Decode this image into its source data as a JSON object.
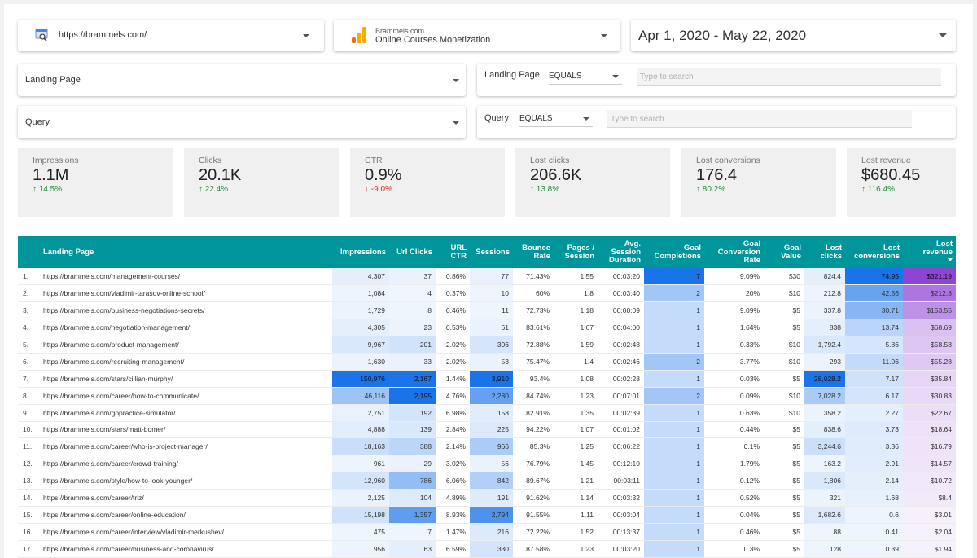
{
  "property_selector": {
    "value": "https://brammels.com/"
  },
  "view_selector": {
    "account": "Brammels.com",
    "view": "Online Courses Monetization"
  },
  "date_range": {
    "value": "Apr 1, 2020 - May 22, 2020"
  },
  "filters": {
    "landing_page_dropdown": "Landing Page",
    "query_dropdown": "Query",
    "landing_filter": {
      "label": "Landing Page",
      "operator": "EQUALS",
      "placeholder": "Type to search"
    },
    "query_filter": {
      "label": "Query",
      "operator": "EQUALS",
      "placeholder": "Type to search"
    }
  },
  "scorecards": [
    {
      "label": "Impressions",
      "value": "1.1M",
      "delta": "14.5%",
      "trend": "up"
    },
    {
      "label": "Clicks",
      "value": "20.1K",
      "delta": "22.4%",
      "trend": "up"
    },
    {
      "label": "CTR",
      "value": "0.9%",
      "delta": "-9.0%",
      "trend": "down"
    },
    {
      "label": "Lost clicks",
      "value": "206.6K",
      "delta": "13.8%",
      "trend": "up"
    },
    {
      "label": "Lost conversions",
      "value": "176.4",
      "delta": "80.2%",
      "trend": "up"
    },
    {
      "label": "Lost revenue",
      "value": "$680.45",
      "delta": "116.4%",
      "trend": "up"
    }
  ],
  "table": {
    "headers": [
      "",
      "Landing Page",
      "Impressions",
      "Url Clicks",
      "URL CTR",
      "Sessions",
      "Bounce Rate",
      "Pages / Session",
      "Avg. Session Duration",
      "Goal Completions",
      "Goal Conversion Rate",
      "Goal Value",
      "Lost clicks",
      "Lost conversions",
      "Lost revenue"
    ],
    "rows": [
      [
        "1.",
        "https://brammels.com/management-courses/",
        "4,307",
        "37",
        "0.86%",
        "77",
        "71.43%",
        "1.55",
        "00:03:20",
        "7",
        "9.09%",
        "$30",
        "824.4",
        "74.95",
        "$321.19"
      ],
      [
        "2.",
        "https://brammels.com/vladimir-tarasov-online-school/",
        "1,084",
        "4",
        "0.37%",
        "10",
        "60%",
        "1.8",
        "00:03:40",
        "2",
        "20%",
        "$10",
        "212.8",
        "42.56",
        "$212.8"
      ],
      [
        "3.",
        "https://brammels.com/business-negotiations-secrets/",
        "1,729",
        "8",
        "0.46%",
        "11",
        "72.73%",
        "1.18",
        "00:00:09",
        "1",
        "9.09%",
        "$5",
        "337.8",
        "30.71",
        "$153.55"
      ],
      [
        "4.",
        "https://brammels.com/negotiation-management/",
        "4,305",
        "23",
        "0.53%",
        "61",
        "83.61%",
        "1.67",
        "00:04:00",
        "1",
        "1.64%",
        "$5",
        "838",
        "13.74",
        "$68.69"
      ],
      [
        "5.",
        "https://brammels.com/product-management/",
        "9,967",
        "201",
        "2.02%",
        "306",
        "72.88%",
        "1.59",
        "00:02:48",
        "1",
        "0.33%",
        "$10",
        "1,792.4",
        "5.86",
        "$58.58"
      ],
      [
        "6.",
        "https://brammels.com/recruiting-management/",
        "1,630",
        "33",
        "2.02%",
        "53",
        "75.47%",
        "1.4",
        "00:02:46",
        "2",
        "3.77%",
        "$10",
        "293",
        "11.06",
        "$55.28"
      ],
      [
        "7.",
        "https://brammels.com/stars/cillian-murphy/",
        "150,976",
        "2,167",
        "1.44%",
        "3,910",
        "93.4%",
        "1.08",
        "00:02:28",
        "1",
        "0.03%",
        "$5",
        "28,028.2",
        "7.17",
        "$35.84"
      ],
      [
        "8.",
        "https://brammels.com/career/how-to-communicate/",
        "46,116",
        "2,195",
        "4.76%",
        "2,280",
        "84.74%",
        "1.23",
        "00:07:01",
        "2",
        "0.09%",
        "$10",
        "7,028.2",
        "6.17",
        "$30.83"
      ],
      [
        "9.",
        "https://brammels.com/gopractice-simulator/",
        "2,751",
        "192",
        "6.98%",
        "158",
        "82.91%",
        "1.35",
        "00:02:39",
        "1",
        "0.63%",
        "$10",
        "358.2",
        "2.27",
        "$22.67"
      ],
      [
        "10.",
        "https://brammels.com/stars/matt-bomer/",
        "4,888",
        "139",
        "2.84%",
        "225",
        "94.22%",
        "1.07",
        "00:01:02",
        "1",
        "0.44%",
        "$5",
        "838.6",
        "3.73",
        "$18.64"
      ],
      [
        "11.",
        "https://brammels.com/career/who-is-project-manager/",
        "18,163",
        "388",
        "2.14%",
        "966",
        "85.3%",
        "1.25",
        "00:06:22",
        "1",
        "0.1%",
        "$5",
        "3,244.6",
        "3.36",
        "$16.79"
      ],
      [
        "12.",
        "https://brammels.com/career/crowd-training/",
        "961",
        "29",
        "3.02%",
        "56",
        "76.79%",
        "1.45",
        "00:12:10",
        "1",
        "1.79%",
        "$5",
        "163.2",
        "2.91",
        "$14.57"
      ],
      [
        "13.",
        "https://brammels.com/style/how-to-look-younger/",
        "12,960",
        "786",
        "6.06%",
        "842",
        "89.67%",
        "1.21",
        "00:03:11",
        "1",
        "0.12%",
        "$5",
        "1,806",
        "2.14",
        "$10.72"
      ],
      [
        "14.",
        "https://brammels.com/career/triz/",
        "2,125",
        "104",
        "4.89%",
        "191",
        "91.62%",
        "1.14",
        "00:03:32",
        "1",
        "0.52%",
        "$5",
        "321",
        "1.68",
        "$8.4"
      ],
      [
        "15.",
        "https://brammels.com/career/online-education/",
        "15,198",
        "1,357",
        "8.93%",
        "2,794",
        "91.55%",
        "1.11",
        "00:03:04",
        "1",
        "0.04%",
        "$5",
        "1,682.6",
        "0.6",
        "$3.01"
      ],
      [
        "16.",
        "https://brammels.com/career/interview/vladimir-merkushev/",
        "475",
        "7",
        "1.47%",
        "216",
        "72.22%",
        "1.52",
        "00:13:37",
        "1",
        "0.46%",
        "$5",
        "88",
        "0.41",
        "$2.04"
      ],
      [
        "17.",
        "https://brammels.com/career/business-and-coronavirus/",
        "956",
        "63",
        "6.59%",
        "330",
        "87.58%",
        "1.23",
        "00:03:20",
        "1",
        "0.3%",
        "$5",
        "128",
        "0.39",
        "$1.94"
      ]
    ]
  },
  "colors": {
    "header_teal": "#00959a",
    "heat_blue": "#1a73e8",
    "heat_purple": "#8e44d4",
    "positive": "#1e8e3e",
    "negative": "#d93025"
  }
}
